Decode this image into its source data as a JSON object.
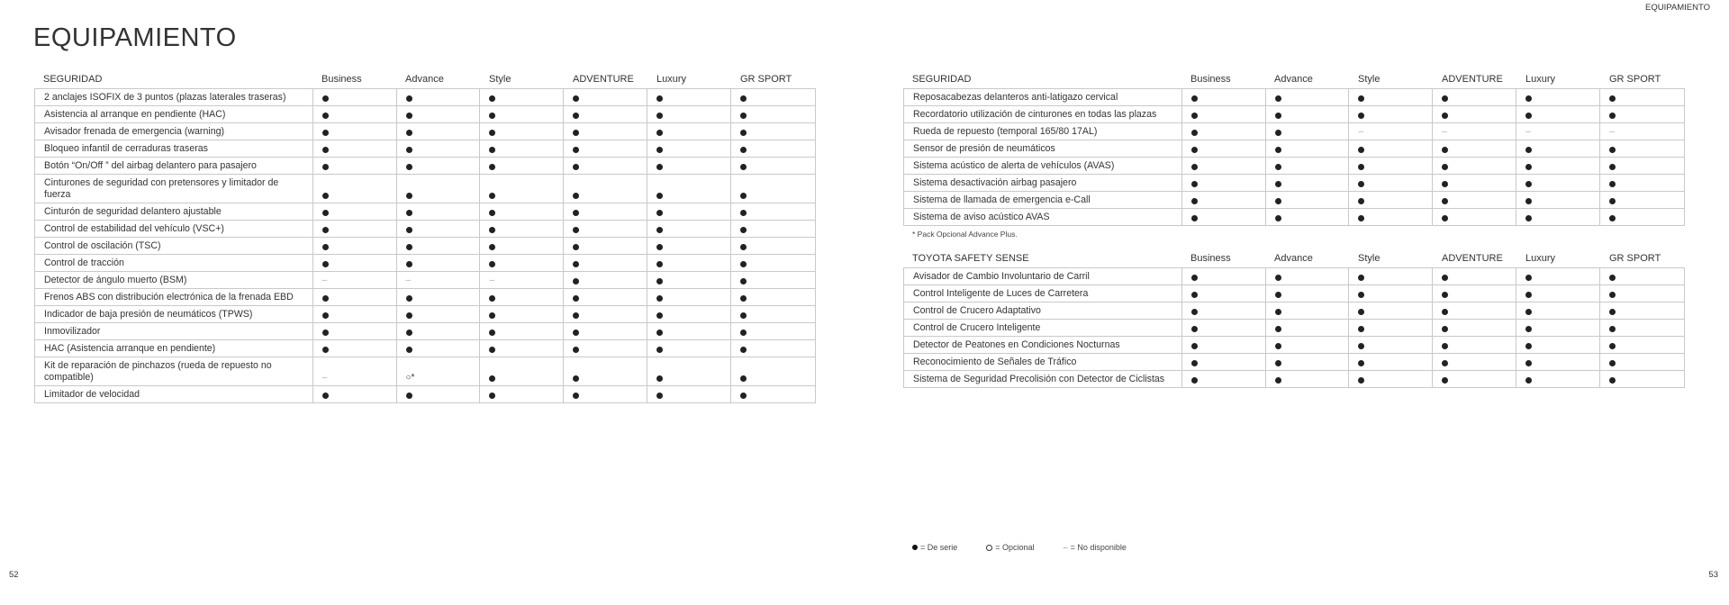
{
  "header": {
    "title": "EQUIPAMIENTO",
    "running_title": "EQUIPAMIENTO"
  },
  "pages": {
    "left": "52",
    "right": "53"
  },
  "columns": [
    "Business",
    "Advance",
    "Style",
    "ADVENTURE",
    "Luxury",
    "GR SPORT"
  ],
  "tables": [
    {
      "title": "SEGURIDAD",
      "rows": [
        {
          "label": "2 anclajes ISOFIX de 3 puntos (plazas laterales traseras)",
          "values": [
            "●",
            "●",
            "●",
            "●",
            "●",
            "●"
          ]
        },
        {
          "label": "Asistencia al arranque en pendiente (HAC)",
          "values": [
            "●",
            "●",
            "●",
            "●",
            "●",
            "●"
          ]
        },
        {
          "label": "Avisador frenada de emergencia (warning)",
          "values": [
            "●",
            "●",
            "●",
            "●",
            "●",
            "●"
          ]
        },
        {
          "label": "Bloqueo infantil de cerraduras traseras",
          "values": [
            "●",
            "●",
            "●",
            "●",
            "●",
            "●"
          ]
        },
        {
          "label": "Botón “On/Off ” del airbag delantero para pasajero",
          "values": [
            "●",
            "●",
            "●",
            "●",
            "●",
            "●"
          ]
        },
        {
          "label": "Cinturones de seguridad con pretensores y limitador de fuerza",
          "values": [
            "●",
            "●",
            "●",
            "●",
            "●",
            "●"
          ]
        },
        {
          "label": "Cinturón de seguridad delantero ajustable",
          "values": [
            "●",
            "●",
            "●",
            "●",
            "●",
            "●"
          ]
        },
        {
          "label": "Control de estabilidad del vehículo (VSC+)",
          "values": [
            "●",
            "●",
            "●",
            "●",
            "●",
            "●"
          ]
        },
        {
          "label": "Control de oscilación (TSC)",
          "values": [
            "●",
            "●",
            "●",
            "●",
            "●",
            "●"
          ]
        },
        {
          "label": "Control de tracción",
          "values": [
            "●",
            "●",
            "●",
            "●",
            "●",
            "●"
          ]
        },
        {
          "label": "Detector de ángulo muerto (BSM)",
          "values": [
            "–",
            "–",
            "–",
            "●",
            "●",
            "●"
          ]
        },
        {
          "label": "Frenos ABS con distribución electrónica de la frenada EBD",
          "values": [
            "●",
            "●",
            "●",
            "●",
            "●",
            "●"
          ]
        },
        {
          "label": "Indicador de baja presión de neumáticos (TPWS)",
          "values": [
            "●",
            "●",
            "●",
            "●",
            "●",
            "●"
          ]
        },
        {
          "label": "Inmovilizador",
          "values": [
            "●",
            "●",
            "●",
            "●",
            "●",
            "●"
          ]
        },
        {
          "label": "HAC (Asistencia arranque en pendiente)",
          "values": [
            "●",
            "●",
            "●",
            "●",
            "●",
            "●"
          ]
        },
        {
          "label": "Kit de reparación de pinchazos (rueda de repuesto no compatible)",
          "values": [
            "–",
            "○*",
            "●",
            "●",
            "●",
            "●"
          ]
        },
        {
          "label": "Limitador de velocidad",
          "values": [
            "●",
            "●",
            "●",
            "●",
            "●",
            "●"
          ]
        }
      ]
    },
    {
      "title": "SEGURIDAD",
      "rows": [
        {
          "label": "Reposacabezas delanteros anti-latigazo cervical",
          "values": [
            "●",
            "●",
            "●",
            "●",
            "●",
            "●"
          ]
        },
        {
          "label": "Recordatorio utilización  de cinturones en todas las plazas",
          "values": [
            "●",
            "●",
            "●",
            "●",
            "●",
            "●"
          ]
        },
        {
          "label": "Rueda de repuesto (temporal 165/80 17AL)",
          "values": [
            "●",
            "●",
            "–",
            "–",
            "–",
            "–"
          ]
        },
        {
          "label": "Sensor de presión de neumáticos",
          "values": [
            "●",
            "●",
            "●",
            "●",
            "●",
            "●"
          ]
        },
        {
          "label": "Sistema acústico de alerta de vehículos (AVAS)",
          "values": [
            "●",
            "●",
            "●",
            "●",
            "●",
            "●"
          ]
        },
        {
          "label": "Sistema desactivación airbag pasajero",
          "values": [
            "●",
            "●",
            "●",
            "●",
            "●",
            "●"
          ]
        },
        {
          "label": "Sistema de llamada de emergencia e-Call",
          "values": [
            "●",
            "●",
            "●",
            "●",
            "●",
            "●"
          ]
        },
        {
          "label": "Sistema de aviso acústico AVAS",
          "values": [
            "●",
            "●",
            "●",
            "●",
            "●",
            "●"
          ]
        }
      ]
    },
    {
      "title": "TOYOTA SAFETY SENSE",
      "rows": [
        {
          "label": "Avisador de Cambio Involuntario de Carril",
          "values": [
            "●",
            "●",
            "●",
            "●",
            "●",
            "●"
          ]
        },
        {
          "label": "Control Inteligente de Luces de Carretera",
          "values": [
            "●",
            "●",
            "●",
            "●",
            "●",
            "●"
          ]
        },
        {
          "label": "Control de Crucero Adaptativo",
          "values": [
            "●",
            "●",
            "●",
            "●",
            "●",
            "●"
          ]
        },
        {
          "label": "Control de Crucero Inteligente",
          "values": [
            "●",
            "●",
            "●",
            "●",
            "●",
            "●"
          ]
        },
        {
          "label": "Detector de Peatones en Condiciones Nocturnas",
          "values": [
            "●",
            "●",
            "●",
            "●",
            "●",
            "●"
          ]
        },
        {
          "label": "Reconocimiento de Señales de Tráfico",
          "values": [
            "●",
            "●",
            "●",
            "●",
            "●",
            "●"
          ]
        },
        {
          "label": "Sistema de Seguridad Precolisión con Detector de Ciclistas",
          "values": [
            "●",
            "●",
            "●",
            "●",
            "●",
            "●"
          ]
        }
      ]
    }
  ],
  "footnote": "* Pack Opcional Advance Plus.",
  "legend": [
    {
      "icon": "filled-dot-icon",
      "label": "= De serie"
    },
    {
      "icon": "hollow-dot-icon",
      "label": "= Opcional"
    },
    {
      "icon": "dash-icon",
      "label": "= No disponible"
    }
  ]
}
